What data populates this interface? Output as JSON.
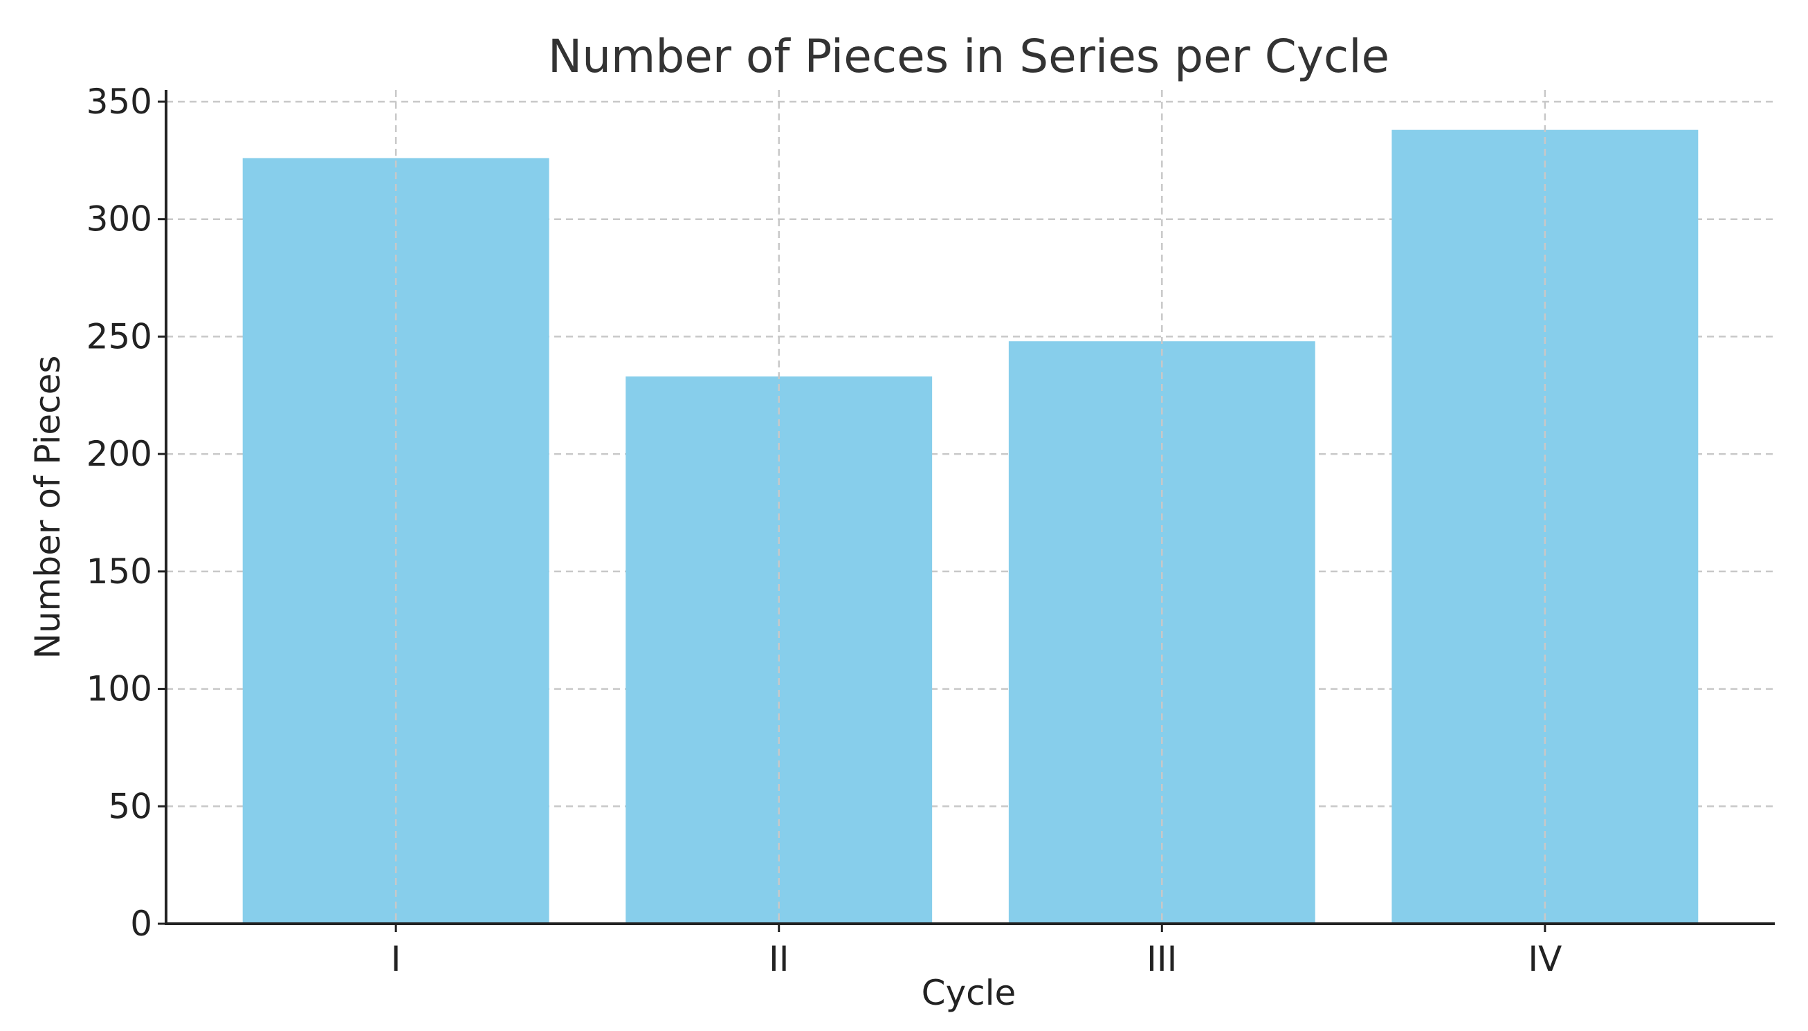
{
  "chart_data": {
    "type": "bar",
    "title": "Number of Pieces in Series per Cycle",
    "xlabel": "Cycle",
    "ylabel": "Number of Pieces",
    "categories": [
      "I",
      "II",
      "III",
      "IV"
    ],
    "values": [
      326,
      233,
      248,
      338
    ],
    "ylim": [
      0,
      355
    ],
    "yticks": [
      0,
      50,
      100,
      150,
      200,
      250,
      300,
      350
    ],
    "grid": true,
    "colors": {
      "bar": "#87CEEB"
    }
  }
}
